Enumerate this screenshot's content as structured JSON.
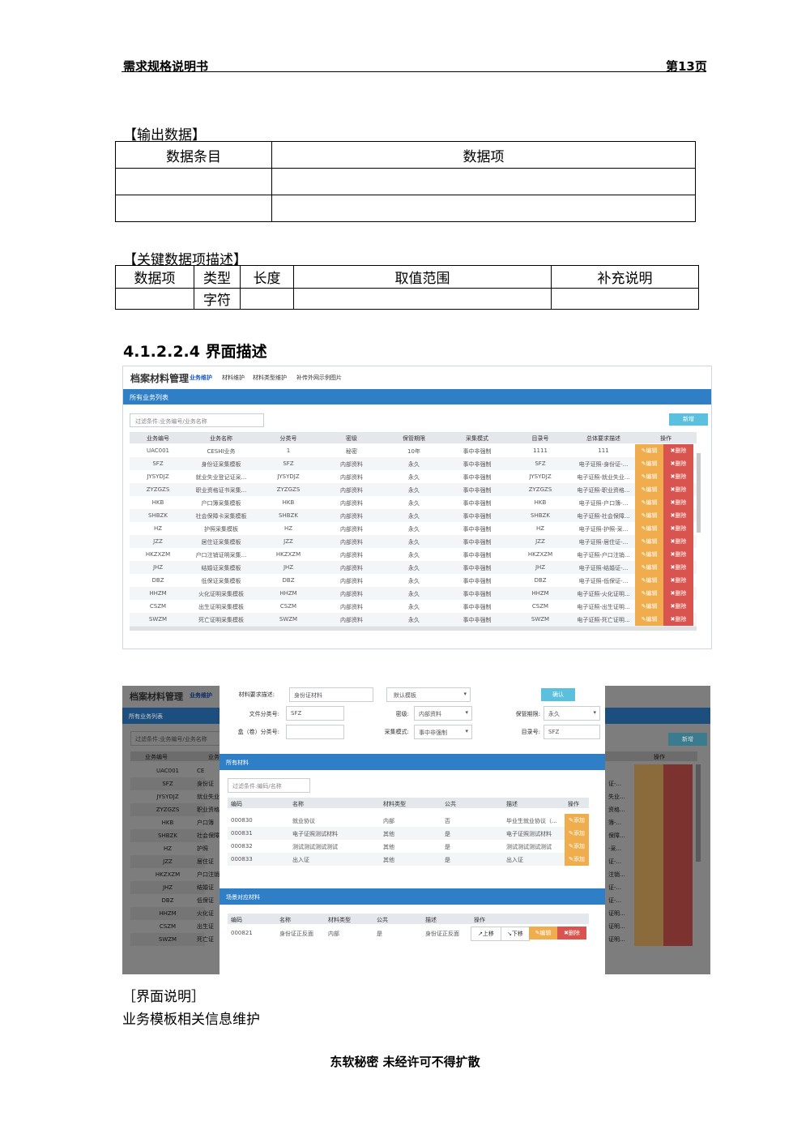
{
  "header": {
    "left": "需求规格说明书",
    "right": "第13页"
  },
  "output_section": {
    "title": "【输出数据】",
    "headers": [
      "数据条目",
      "数据项"
    ]
  },
  "key_section": {
    "title": "【关键数据项描述】",
    "headers": [
      "数据项",
      "类型",
      "长度",
      "取值范围",
      "补充说明"
    ],
    "row": [
      "",
      "字符",
      "",
      "",
      ""
    ]
  },
  "heading": "4.1.2.2.4  界面描述",
  "shot1": {
    "brand": "档案材料管理",
    "nav": [
      "业务维护",
      "材料维护",
      "材料类型维护",
      "补传外网示例图片"
    ],
    "panel_title": "所有业务列表",
    "filter_placeholder": "过滤条件:业务编号/业务名称",
    "add_label": "新增",
    "columns": [
      "业务编号",
      "业务名称",
      "分类号",
      "密级",
      "保管期限",
      "采集模式",
      "目录号",
      "总体要求描述",
      "操作"
    ],
    "edit_label": "✎编辑",
    "delete_label": "✖删除",
    "rows": [
      [
        "UAC001",
        "CESHI业务",
        "1",
        "秘密",
        "10年",
        "事中非强制",
        "1111",
        "111"
      ],
      [
        "SFZ",
        "身份证采集模板",
        "SFZ",
        "内部资料",
        "永久",
        "事中非强制",
        "SFZ",
        "电子证照-身份证-..."
      ],
      [
        "JYSYDJZ",
        "就业失业登记证采...",
        "JYSYDJZ",
        "内部资料",
        "永久",
        "事中非强制",
        "JYSYDJZ",
        "电子证照-就业失业..."
      ],
      [
        "ZYZGZS",
        "职业资格证书采集...",
        "ZYZGZS",
        "内部资料",
        "永久",
        "事中非强制",
        "ZYZGZS",
        "电子证照-职业资格..."
      ],
      [
        "HKB",
        "户口簿采集模板",
        "HKB",
        "内部资料",
        "永久",
        "事中非强制",
        "HKB",
        "电子证照-户口簿-..."
      ],
      [
        "SHBZK",
        "社会保障卡采集模板",
        "SHBZK",
        "内部资料",
        "永久",
        "事中非强制",
        "SHBZK",
        "电子证照-社会保障..."
      ],
      [
        "HZ",
        "护照采集模板",
        "HZ",
        "内部资料",
        "永久",
        "事中非强制",
        "HZ",
        "电子证照-护照-采..."
      ],
      [
        "JZZ",
        "居住证采集模板",
        "JZZ",
        "内部资料",
        "永久",
        "事中非强制",
        "JZZ",
        "电子证照-居住证-..."
      ],
      [
        "HKZXZM",
        "户口注销证明采集...",
        "HKZXZM",
        "内部资料",
        "永久",
        "事中非强制",
        "HKZXZM",
        "电子证照-户口注销..."
      ],
      [
        "JHZ",
        "结婚证采集模板",
        "JHZ",
        "内部资料",
        "永久",
        "事中非强制",
        "JHZ",
        "电子证照-结婚证-..."
      ],
      [
        "DBZ",
        "低保证采集模板",
        "DBZ",
        "内部资料",
        "永久",
        "事中非强制",
        "DBZ",
        "电子证照-低保证-..."
      ],
      [
        "HHZM",
        "火化证明采集模板",
        "HHZM",
        "内部资料",
        "永久",
        "事中非强制",
        "HHZM",
        "电子证照-火化证明..."
      ],
      [
        "CSZM",
        "出生证明采集模板",
        "CSZM",
        "内部资料",
        "永久",
        "事中非强制",
        "CSZM",
        "电子证照-出生证明..."
      ],
      [
        "SWZM",
        "死亡证明采集模板",
        "SWZM",
        "内部资料",
        "永久",
        "事中非强制",
        "SWZM",
        "电子证照-死亡证明..."
      ]
    ]
  },
  "shot2": {
    "brand": "档案材料管理",
    "nav_active": "业务维护",
    "panel_title": "所有业务列表",
    "filter_placeholder": "过滤条件:业务编号/业务名称",
    "add_label": "新增",
    "bg_columns": [
      "业务编号",
      "业务"
    ],
    "bg_op": "操作",
    "bg_codes": [
      "UAC001",
      "SFZ",
      "JYSYDJZ",
      "ZYZGZS",
      "HKB",
      "SHBZK",
      "HZ",
      "JZZ",
      "HKZXZM",
      "JHZ",
      "DBZ",
      "HHZM",
      "CSZM",
      "SWZM"
    ],
    "bg_names": [
      "CE",
      "身份证",
      "就业失业",
      "职业资格",
      "户口簿",
      "社会保障",
      "护照",
      "居住证",
      "户口注销",
      "结婚证",
      "低保证",
      "火化证",
      "出生证",
      "死亡证"
    ],
    "bg_descs": [
      "",
      "证-...",
      "失业...",
      "资格...",
      "簿-...",
      "保障...",
      "-采...",
      "证-...",
      "注销...",
      "证-...",
      "证-...",
      "证明...",
      "证明...",
      "证明..."
    ],
    "form": {
      "desc_label": "材料要求描述:",
      "desc_value": "身份证材料",
      "template_value": "默认模板",
      "confirm_label": "确认",
      "filecls_label": "文件分类号:",
      "filecls_value": "SFZ",
      "secret_label": "密级:",
      "secret_value": "内部资料",
      "period_label": "保管期限:",
      "period_value": "永久",
      "box_label": "盒（卷）分类号:",
      "box_value": "",
      "mode_label": "采集模式:",
      "mode_value": "事中非强制",
      "catalog_label": "目录号:",
      "catalog_value": "SFZ"
    },
    "all_materials": {
      "title": "所有材料",
      "filter_placeholder": "过滤条件:编码/名称",
      "columns": [
        "编码",
        "名称",
        "材料类型",
        "公共",
        "描述",
        "操作"
      ],
      "add_label": "✎添加",
      "rows": [
        [
          "000830",
          "就业协议",
          "内部",
          "否",
          "毕业生就业协议（..."
        ],
        [
          "000831",
          "电子证照测试材料",
          "其他",
          "是",
          "电子证照测试材料"
        ],
        [
          "000832",
          "测试测试测试测试",
          "其他",
          "是",
          "测试测试测试测试"
        ],
        [
          "000833",
          "出入证",
          "其他",
          "是",
          "出入证"
        ]
      ]
    },
    "scene_materials": {
      "title": "场景对应材料",
      "columns": [
        "编码",
        "名称",
        "材料类型",
        "公共",
        "描述",
        "操作"
      ],
      "up_label": "↗上移",
      "down_label": "↘下移",
      "edit_label": "✎编辑",
      "delete_label": "✖删除",
      "rows": [
        [
          "000821",
          "身份证正反面",
          "内部",
          "是",
          "身份证正反面"
        ]
      ]
    }
  },
  "caption": {
    "title": "［界面说明］",
    "text": "业务模板相关信息维护"
  },
  "footer": "东软秘密  未经许可不得扩散",
  "colors": {
    "primary": "#2f7fc7",
    "edit": "#f0ad4e",
    "delete": "#d9534f",
    "info": "#5bc0de"
  }
}
